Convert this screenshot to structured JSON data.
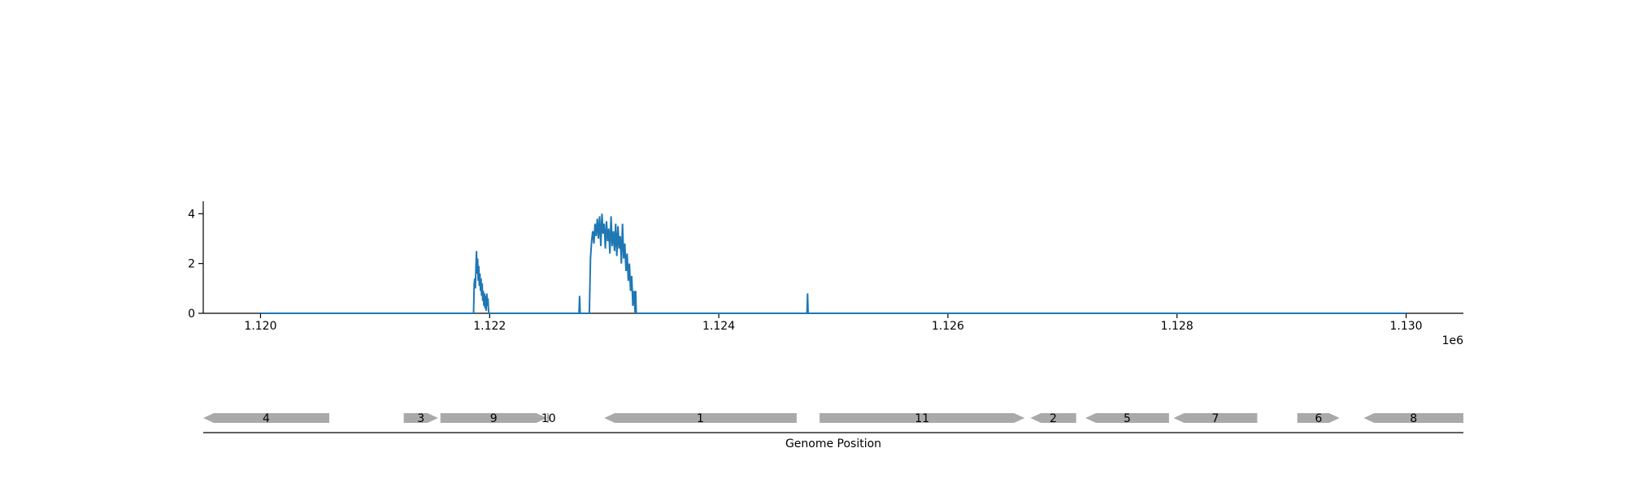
{
  "chart_data": [
    {
      "type": "line",
      "title": "",
      "xlabel": "",
      "ylabel": "",
      "x_offset_label": "1e6",
      "xlim": [
        1119500,
        1130500
      ],
      "ylim": [
        0,
        4.5
      ],
      "xticks": [
        1120000,
        1122000,
        1124000,
        1126000,
        1128000,
        1130000
      ],
      "xtick_labels": [
        "1.120",
        "1.122",
        "1.124",
        "1.126",
        "1.128",
        "1.130"
      ],
      "yticks": [
        0,
        2,
        4
      ],
      "ytick_labels": [
        "0",
        "2",
        "4"
      ],
      "grid": false,
      "color": "#1f77b4",
      "series": [
        {
          "x": [
            1120000,
            1121860,
            1121865,
            1121870,
            1121875,
            1121880,
            1121885,
            1121890,
            1121895,
            1121900,
            1121905,
            1121910,
            1121915,
            1121920,
            1121925,
            1121930,
            1121935,
            1121940,
            1121945,
            1121950,
            1121955,
            1121960,
            1121965,
            1121970,
            1121975,
            1121980,
            1121985,
            1121990,
            1121995,
            1122780,
            1122785,
            1122790,
            1122800,
            1122870,
            1122880,
            1122890,
            1122900,
            1122910,
            1122920,
            1122930,
            1122940,
            1122950,
            1122960,
            1122970,
            1122980,
            1122990,
            1123000,
            1123010,
            1123020,
            1123030,
            1123040,
            1123050,
            1123060,
            1123070,
            1123080,
            1123090,
            1123100,
            1123110,
            1123120,
            1123130,
            1123140,
            1123150,
            1123160,
            1123170,
            1123180,
            1123190,
            1123200,
            1123210,
            1123220,
            1123230,
            1123240,
            1123250,
            1123260,
            1123270,
            1123275,
            1123280,
            1123290,
            1124770,
            1124775,
            1124780,
            1124790,
            1130000
          ],
          "y": [
            0,
            0,
            1.2,
            1.4,
            1.0,
            1.8,
            2.5,
            1.6,
            2.2,
            1.3,
            1.9,
            1.1,
            1.6,
            0.9,
            1.4,
            0.7,
            1.2,
            0.5,
            0.9,
            0.3,
            0.8,
            0.2,
            0.7,
            0.1,
            0.8,
            0.3,
            0.6,
            0.1,
            0,
            0,
            0.7,
            0,
            0,
            0,
            2.2,
            2.9,
            3.3,
            2.8,
            3.6,
            3.1,
            3.8,
            3.0,
            3.9,
            2.7,
            4.0,
            3.2,
            3.6,
            2.6,
            3.7,
            2.9,
            3.4,
            2.4,
            3.9,
            2.7,
            3.3,
            2.5,
            3.6,
            2.3,
            3.5,
            2.6,
            3.1,
            2.0,
            3.6,
            2.2,
            2.8,
            1.7,
            2.4,
            1.3,
            2.0,
            0.9,
            1.5,
            0.3,
            0.9,
            0,
            0.9,
            0,
            0,
            0,
            0.8,
            0,
            0,
            0
          ]
        }
      ]
    },
    {
      "type": "diagram",
      "xlabel": "Genome Position",
      "xlim": [
        1119500,
        1130500
      ],
      "color": "#a9a9a9",
      "genes": [
        {
          "label": "4",
          "start": 1119500,
          "end": 1120600,
          "strand": -1
        },
        {
          "label": "3",
          "start": 1121250,
          "end": 1121550,
          "strand": 1
        },
        {
          "label": "9",
          "start": 1121570,
          "end": 1122500,
          "strand": 1
        },
        {
          "label": "10",
          "start": 1122500,
          "end": 1122530,
          "strand": 1
        },
        {
          "label": "1",
          "start": 1123000,
          "end": 1124680,
          "strand": -1
        },
        {
          "label": "11",
          "start": 1124880,
          "end": 1126670,
          "strand": 1
        },
        {
          "label": "2",
          "start": 1126720,
          "end": 1127120,
          "strand": -1
        },
        {
          "label": "5",
          "start": 1127200,
          "end": 1127930,
          "strand": -1
        },
        {
          "label": "7",
          "start": 1127970,
          "end": 1128700,
          "strand": -1
        },
        {
          "label": "6",
          "start": 1129050,
          "end": 1129420,
          "strand": 1
        },
        {
          "label": "8",
          "start": 1129630,
          "end": 1130500,
          "strand": -1
        }
      ]
    }
  ]
}
